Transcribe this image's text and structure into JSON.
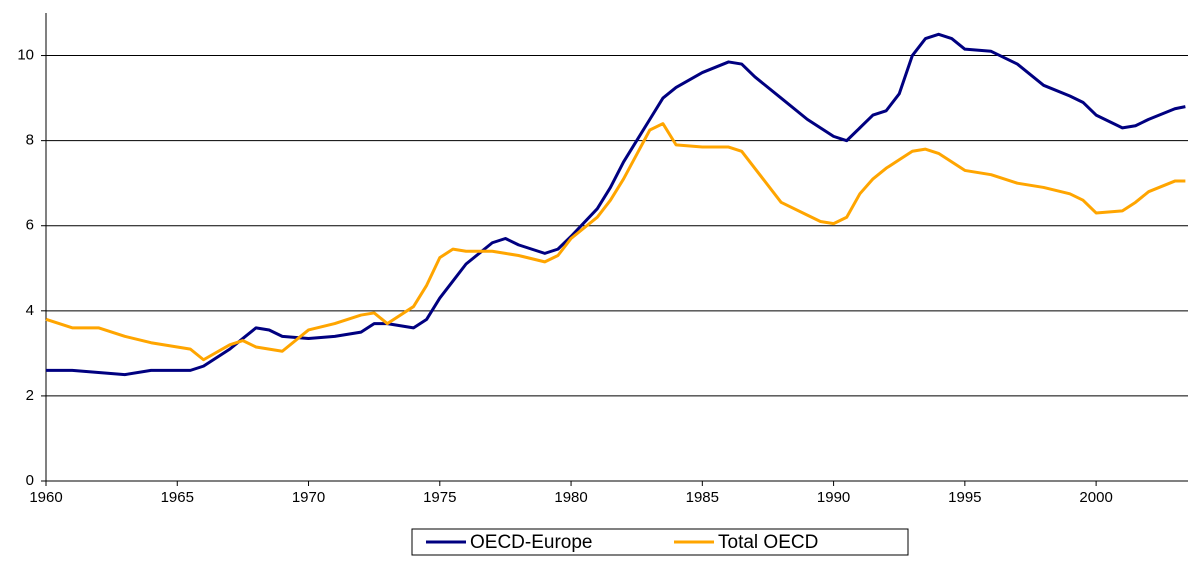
{
  "chart_data": {
    "type": "line",
    "x": [
      1960,
      1961,
      1962,
      1963,
      1964,
      1965,
      1965.5,
      1966,
      1967,
      1967.5,
      1968,
      1968.5,
      1969,
      1970,
      1971,
      1972,
      1972.5,
      1973,
      1974,
      1974.5,
      1975,
      1975.5,
      1976,
      1977,
      1977.5,
      1978,
      1979,
      1979.5,
      1980,
      1981,
      1981.5,
      1982,
      1983,
      1983.5,
      1984,
      1985,
      1986,
      1986.5,
      1987,
      1988,
      1989,
      1989.5,
      1990,
      1990.5,
      1991,
      1991.5,
      1992,
      1992.5,
      1993,
      1993.5,
      1994,
      1994.5,
      1995,
      1996,
      1997,
      1998,
      1999,
      1999.5,
      2000,
      2001,
      2001.5,
      2002,
      2003,
      2003.4
    ],
    "series": [
      {
        "name": "OECD-Europe",
        "color": "#000080",
        "values": [
          2.6,
          2.6,
          2.55,
          2.5,
          2.6,
          2.6,
          2.6,
          2.7,
          3.1,
          3.35,
          3.6,
          3.55,
          3.4,
          3.35,
          3.4,
          3.5,
          3.7,
          3.7,
          3.6,
          3.8,
          4.3,
          4.7,
          5.1,
          5.6,
          5.7,
          5.55,
          5.35,
          5.45,
          5.75,
          6.4,
          6.9,
          7.5,
          8.5,
          9.0,
          9.25,
          9.6,
          9.85,
          9.8,
          9.5,
          9.0,
          8.5,
          8.3,
          8.1,
          8.0,
          8.3,
          8.6,
          8.7,
          9.1,
          10.0,
          10.4,
          10.5,
          10.4,
          10.15,
          10.1,
          9.8,
          9.3,
          9.05,
          8.9,
          8.6,
          8.3,
          8.35,
          8.5,
          8.75,
          8.8
        ]
      },
      {
        "name": "Total OECD",
        "color": "#ffa500",
        "values": [
          3.8,
          3.6,
          3.6,
          3.4,
          3.25,
          3.15,
          3.1,
          2.85,
          3.2,
          3.3,
          3.15,
          3.1,
          3.05,
          3.55,
          3.7,
          3.9,
          3.95,
          3.7,
          4.1,
          4.6,
          5.25,
          5.45,
          5.4,
          5.4,
          5.35,
          5.3,
          5.15,
          5.3,
          5.7,
          6.2,
          6.6,
          7.1,
          8.25,
          8.4,
          7.9,
          7.85,
          7.85,
          7.75,
          7.35,
          6.55,
          6.25,
          6.1,
          6.05,
          6.2,
          6.75,
          7.1,
          7.35,
          7.55,
          7.75,
          7.8,
          7.7,
          7.5,
          7.3,
          7.2,
          7.0,
          6.9,
          6.75,
          6.6,
          6.3,
          6.35,
          6.55,
          6.8,
          7.05,
          7.05
        ]
      }
    ],
    "xlim": [
      1960,
      2003.5
    ],
    "xticks": [
      1960,
      1965,
      1970,
      1975,
      1980,
      1985,
      1990,
      1995,
      2000
    ],
    "ylim": [
      0,
      11
    ],
    "yticks": [
      0,
      2,
      4,
      6,
      8,
      10
    ],
    "grid": true,
    "legend": "bottom"
  }
}
